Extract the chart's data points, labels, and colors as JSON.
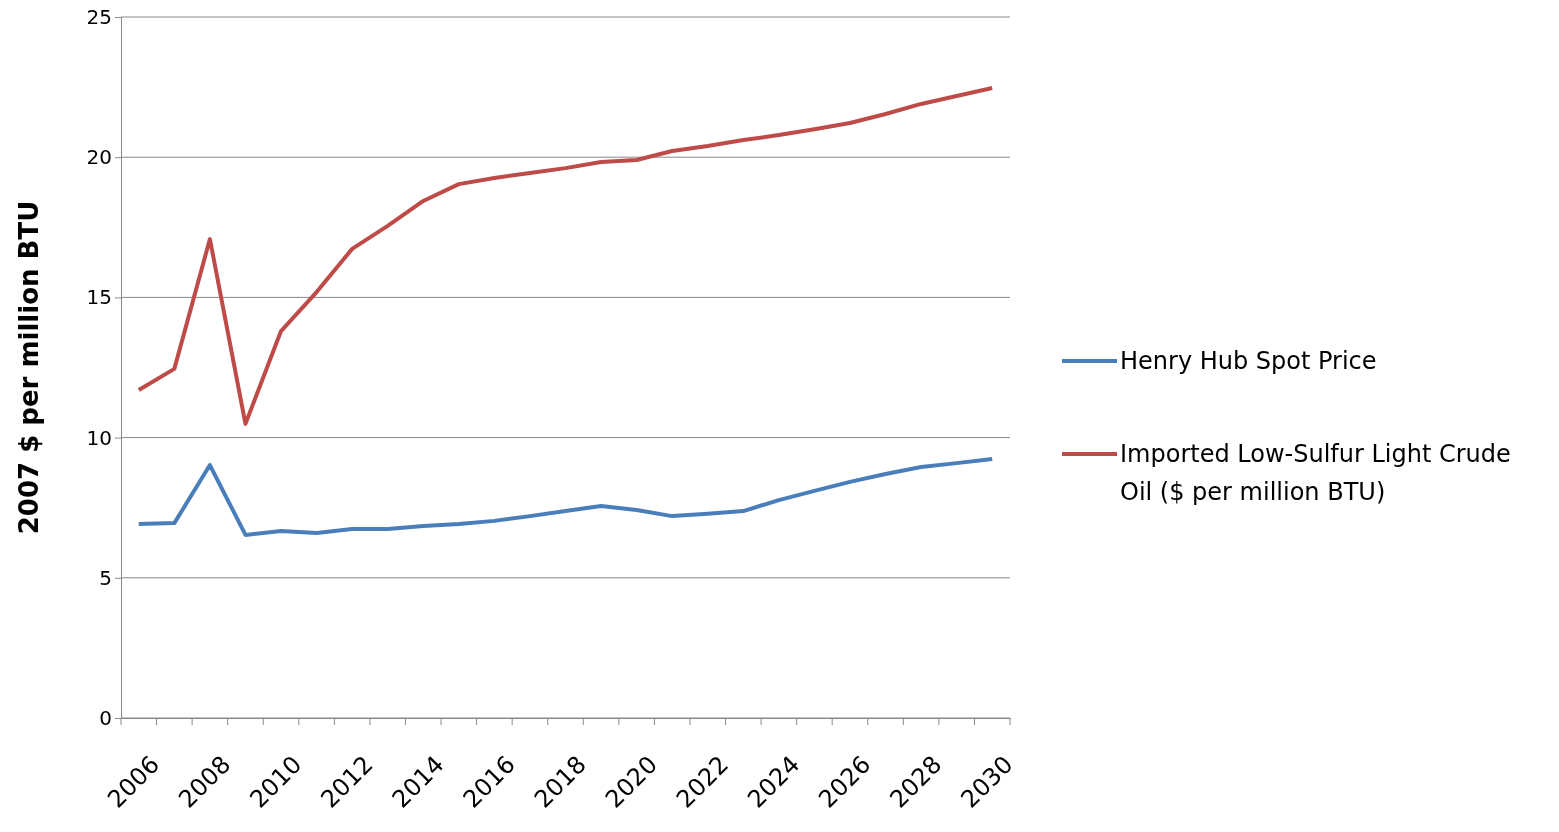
{
  "chart_data": {
    "type": "line",
    "ylabel": "2007 $ per million BTU",
    "categories": [
      "2006",
      null,
      "2008",
      null,
      "2010",
      null,
      "2012",
      null,
      "2014",
      null,
      "2016",
      null,
      "2018",
      null,
      "2020",
      null,
      "2022",
      null,
      "2024",
      null,
      "2026",
      null,
      "2028",
      null,
      "2030"
    ],
    "series": [
      {
        "name": "Henry Hub Spot Price",
        "color": "#4a7ebb",
        "values": [
          6.92,
          6.95,
          9.02,
          6.53,
          6.67,
          6.6,
          6.74,
          6.74,
          6.85,
          6.92,
          7.03,
          7.2,
          7.38,
          7.56,
          7.42,
          7.2,
          7.28,
          7.38,
          7.77,
          8.1,
          8.42,
          8.7,
          8.95,
          9.09,
          9.24
        ]
      },
      {
        "name": "Imported Low-Sulfur Light Crude Oil ($ per million BTU)",
        "color": "#be4b48",
        "values": [
          11.7,
          12.45,
          17.08,
          10.49,
          13.8,
          15.19,
          16.73,
          17.55,
          18.44,
          19.04,
          19.26,
          19.44,
          19.61,
          19.83,
          19.9,
          20.22,
          20.4,
          20.61,
          20.79,
          21.0,
          21.22,
          21.54,
          21.9,
          22.18,
          22.47
        ]
      }
    ],
    "ylim": [
      0,
      25
    ],
    "yticks": [
      0,
      5,
      10,
      15,
      20,
      25
    ],
    "grid": "y",
    "legend": "right",
    "marker": "none",
    "line_style": "solid"
  }
}
